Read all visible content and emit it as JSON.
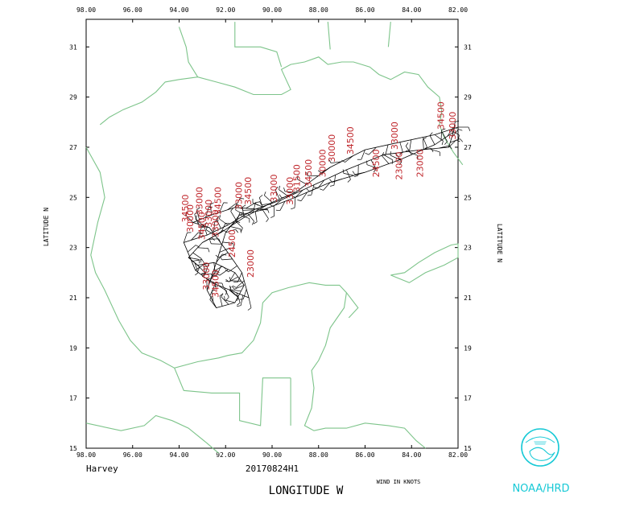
{
  "storm_name": "Harvey",
  "flight_id": "20170824H1",
  "x_axis_title": "LONGITUDE   W",
  "y_axis_title": "LATITUDE   N",
  "wind_units": "WIND IN KNOTS",
  "agency": "NOAA/HRD",
  "lon_ticks": [
    "98.00",
    "96.00",
    "94.00",
    "92.00",
    "90.00",
    "88.00",
    "86.00",
    "84.00",
    "82.00"
  ],
  "lat_ticks": [
    "31",
    "29",
    "27",
    "25",
    "23",
    "21",
    "19",
    "17",
    "15"
  ],
  "map": {
    "lon_range": [
      -98,
      -82
    ],
    "lat_range": [
      15,
      32.1
    ],
    "coast_color": "#7dc48a",
    "altitude_label_color": "#c0282d",
    "track_color": "#000000"
  },
  "altitude_labels": [
    {
      "text": "34500",
      "lon": -82.6,
      "lat": 27.7
    },
    {
      "text": "33000",
      "lon": -82.1,
      "lat": 27.3
    },
    {
      "text": "33000",
      "lon": -84.6,
      "lat": 26.9
    },
    {
      "text": "34500",
      "lon": -86.5,
      "lat": 26.7
    },
    {
      "text": "30000",
      "lon": -87.3,
      "lat": 26.4
    },
    {
      "text": "30000",
      "lon": -87.7,
      "lat": 25.8
    },
    {
      "text": "34500",
      "lon": -88.3,
      "lat": 25.4
    },
    {
      "text": "31500",
      "lon": -88.8,
      "lat": 25.2
    },
    {
      "text": "33000",
      "lon": -89.8,
      "lat": 24.8
    },
    {
      "text": "33000",
      "lon": -89.1,
      "lat": 24.7
    },
    {
      "text": "24500",
      "lon": -85.4,
      "lat": 25.8
    },
    {
      "text": "23000",
      "lon": -84.4,
      "lat": 25.7
    },
    {
      "text": "23000",
      "lon": -83.5,
      "lat": 25.8
    },
    {
      "text": "34500",
      "lon": -90.9,
      "lat": 24.7
    },
    {
      "text": "33000",
      "lon": -91.3,
      "lat": 24.5
    },
    {
      "text": "34500",
      "lon": -92.2,
      "lat": 24.3
    },
    {
      "text": "33000",
      "lon": -93.0,
      "lat": 24.3
    },
    {
      "text": "34500",
      "lon": -93.6,
      "lat": 24.0
    },
    {
      "text": "30000",
      "lon": -93.4,
      "lat": 23.6
    },
    {
      "text": "33000",
      "lon": -92.6,
      "lat": 23.8
    },
    {
      "text": "34500",
      "lon": -92.9,
      "lat": 23.3
    },
    {
      "text": "33000",
      "lon": -92.3,
      "lat": 23.4
    },
    {
      "text": "24500",
      "lon": -91.6,
      "lat": 22.6
    },
    {
      "text": "23000",
      "lon": -90.8,
      "lat": 21.8
    },
    {
      "text": "33000",
      "lon": -92.7,
      "lat": 21.3
    },
    {
      "text": "34500",
      "lon": -92.3,
      "lat": 21.0
    }
  ]
}
